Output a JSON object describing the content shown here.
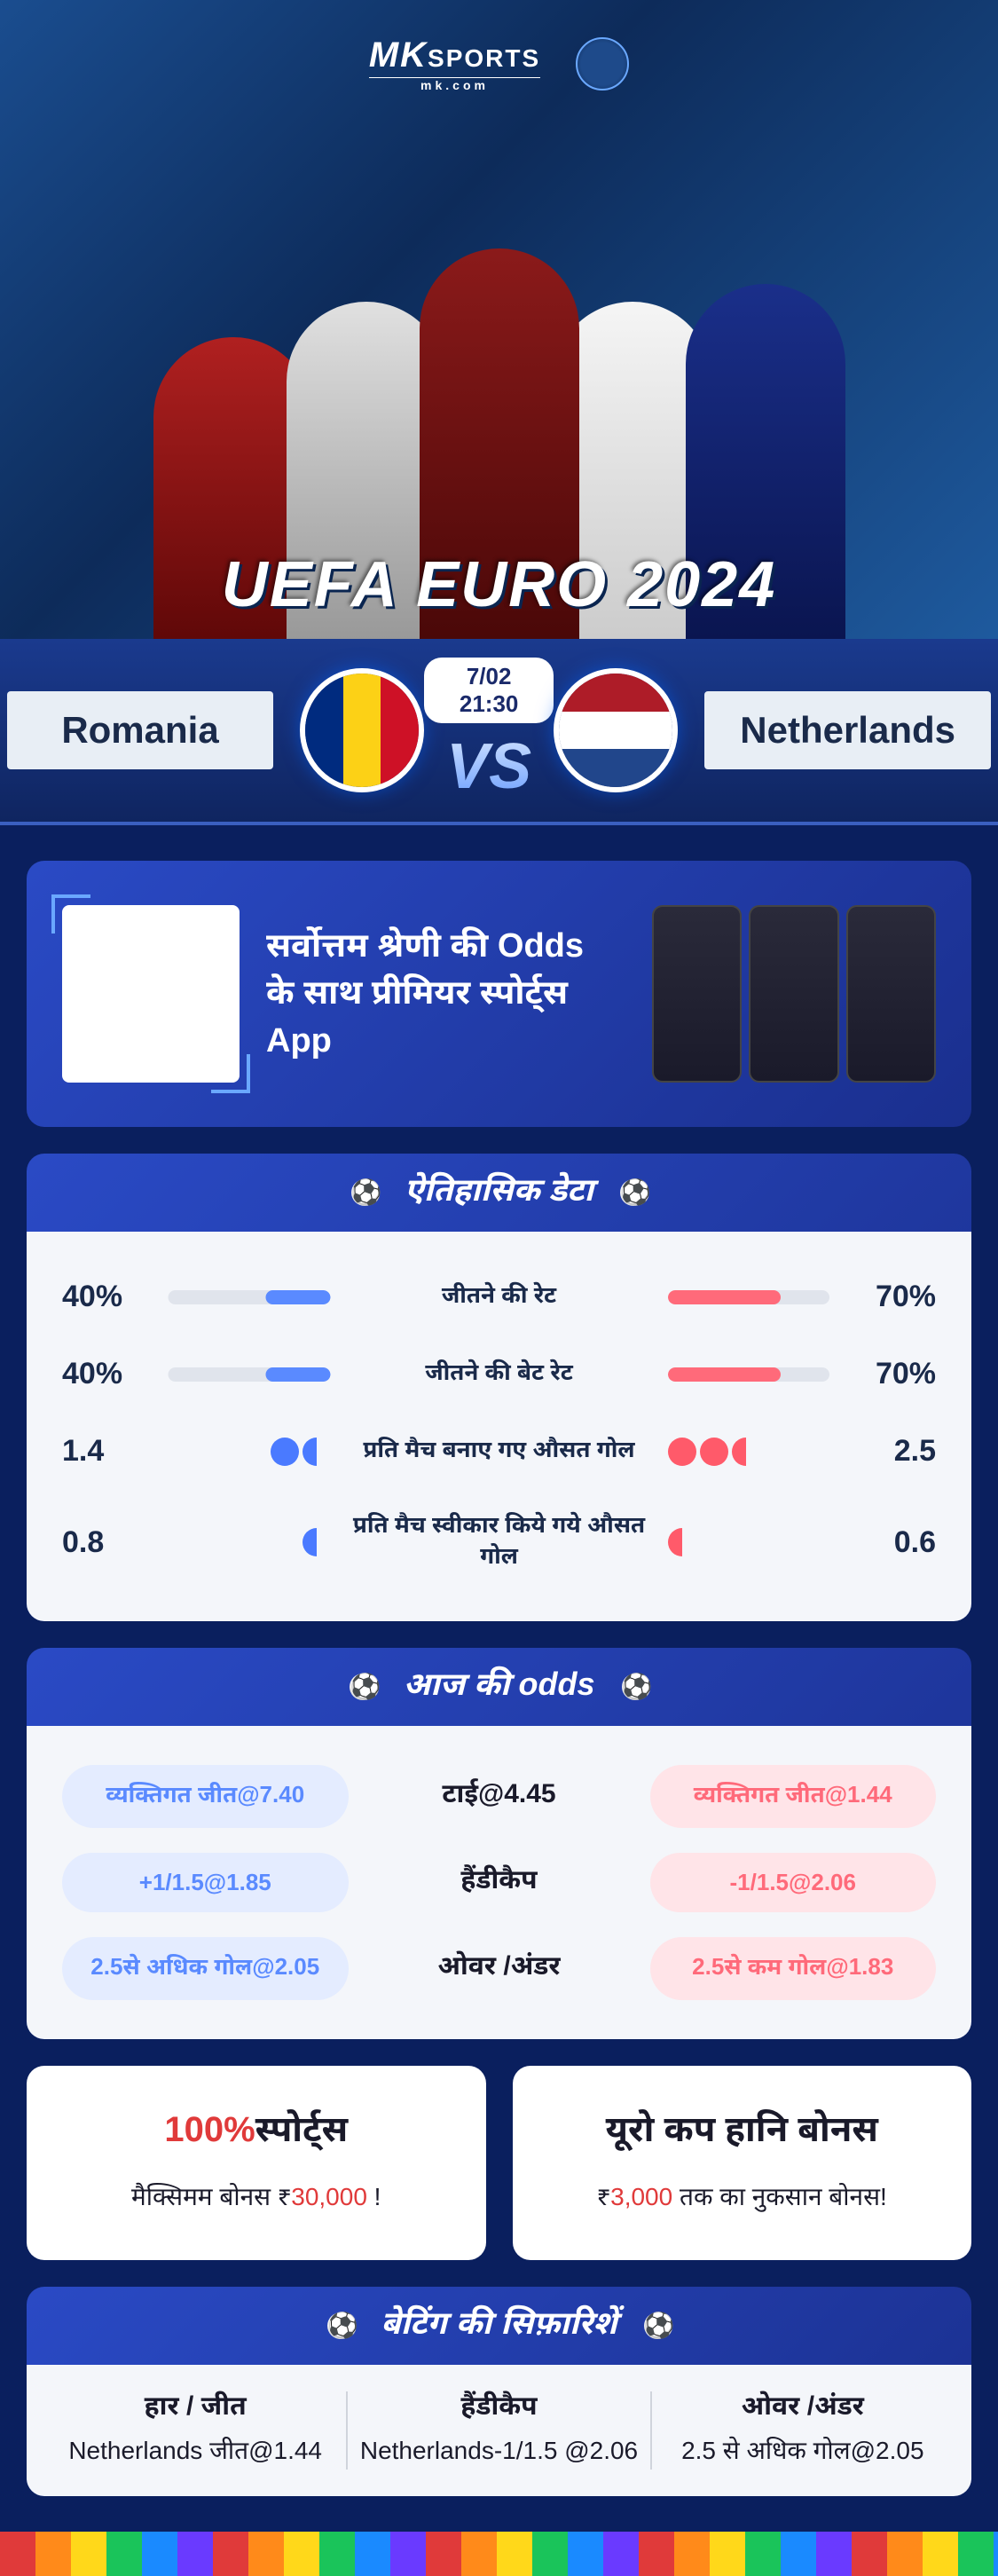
{
  "brand": {
    "main": "MK",
    "top": "SPORTS",
    "sub": "mk.com"
  },
  "event_title": "UEFA EURO 2024",
  "match": {
    "team_a": "Romania",
    "team_b": "Netherlands",
    "datetime": "7/02 21:30",
    "vs": "VS"
  },
  "promo": {
    "line1": "सर्वोत्तम श्रेणी की Odds",
    "line2": "के साथ प्रीमियर स्पोर्ट्स App"
  },
  "history": {
    "title": "ऐतिहासिक डेटा",
    "rows": [
      {
        "left_val": "40%",
        "label": "जीतने की रेट",
        "right_val": "70%",
        "left_pct": 40,
        "right_pct": 70,
        "type": "bar"
      },
      {
        "left_val": "40%",
        "label": "जीतने की बेट रेट",
        "right_val": "70%",
        "left_pct": 40,
        "right_pct": 70,
        "type": "bar"
      },
      {
        "left_val": "1.4",
        "label": "प्रति मैच बनाए गए औसत गोल",
        "right_val": "2.5",
        "type": "goals",
        "left_balls": 1.4,
        "right_balls": 2.5
      },
      {
        "left_val": "0.8",
        "label": "प्रति मैच स्वीकार किये गये औसत गोल",
        "right_val": "0.6",
        "type": "goals",
        "left_balls": 0.8,
        "right_balls": 0.6
      }
    ]
  },
  "odds": {
    "title": "आज की odds",
    "rows": [
      {
        "left": "व्यक्तिगत जीत@7.40",
        "mid": "टाई@4.45",
        "right": "व्यक्तिगत जीत@1.44"
      },
      {
        "left": "+1/1.5@1.85",
        "mid": "हैंडीकैप",
        "right": "-1/1.5@2.06"
      },
      {
        "left": "2.5से अधिक गोल@2.05",
        "mid": "ओवर /अंडर",
        "right": "2.5से कम गोल@1.83"
      }
    ]
  },
  "bonuses": {
    "card1": {
      "accent": "100%",
      "title_rest": "स्पोर्ट्स",
      "sub_pre": "मैक्सिमम बोनस  ₹",
      "sub_accent": "30,000",
      "sub_post": " !"
    },
    "card2": {
      "title": "यूरो कप हानि बोनस",
      "sub_pre": "₹",
      "sub_accent": "3,000",
      "sub_post": " तक का नुकसान बोनस!"
    }
  },
  "reco": {
    "title": "बेटिंग की सिफ़ारिशें",
    "cols": [
      {
        "label": "हार / जीत",
        "val": "Netherlands जीत@1.44"
      },
      {
        "label": "हैंडीकैप",
        "val": "Netherlands-1/1.5 @2.06"
      },
      {
        "label": "ओवर /अंडर",
        "val": "2.5 से अधिक गोल@2.05"
      }
    ]
  },
  "colors": {
    "accent_red": "#e03a3a",
    "blue_bar": "#5a8aff",
    "red_bar": "#ff6a7a"
  }
}
